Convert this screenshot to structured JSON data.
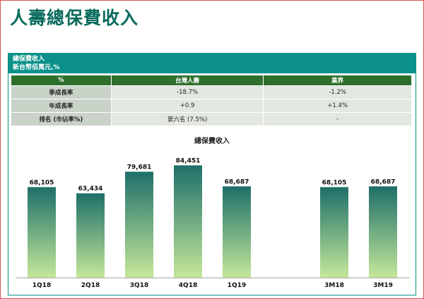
{
  "page": {
    "title": "人壽總保費收入"
  },
  "panel": {
    "header_line1": "總保費收入",
    "header_line2": "新台幣佰萬元,%"
  },
  "table": {
    "headers": [
      "%",
      "台灣人壽",
      "業界"
    ],
    "rows": [
      {
        "label": "季成長率",
        "taiwan_life": "-18.7%",
        "industry": "-1.2%"
      },
      {
        "label": "年成長率",
        "taiwan_life": "+0.9",
        "industry": "+1.4%"
      },
      {
        "label": "排名 (市佔率%)",
        "taiwan_life": "第六名 (7.5%)",
        "industry": "-"
      }
    ]
  },
  "chart_data": {
    "type": "bar",
    "title": "總保費收入",
    "categories": [
      "1Q18",
      "2Q18",
      "3Q18",
      "4Q18",
      "1Q19",
      "3M18",
      "3M19"
    ],
    "values": [
      68105,
      63434,
      79681,
      84451,
      68687,
      68105,
      68687
    ],
    "value_labels": [
      "68,105",
      "63,434",
      "79,681",
      "84,451",
      "68,687",
      "68,105",
      "68,687"
    ],
    "ylim": [
      0,
      90000
    ],
    "grid": false,
    "colors": {
      "top": "#1e6f69",
      "bottom": "#c5e89a"
    }
  }
}
